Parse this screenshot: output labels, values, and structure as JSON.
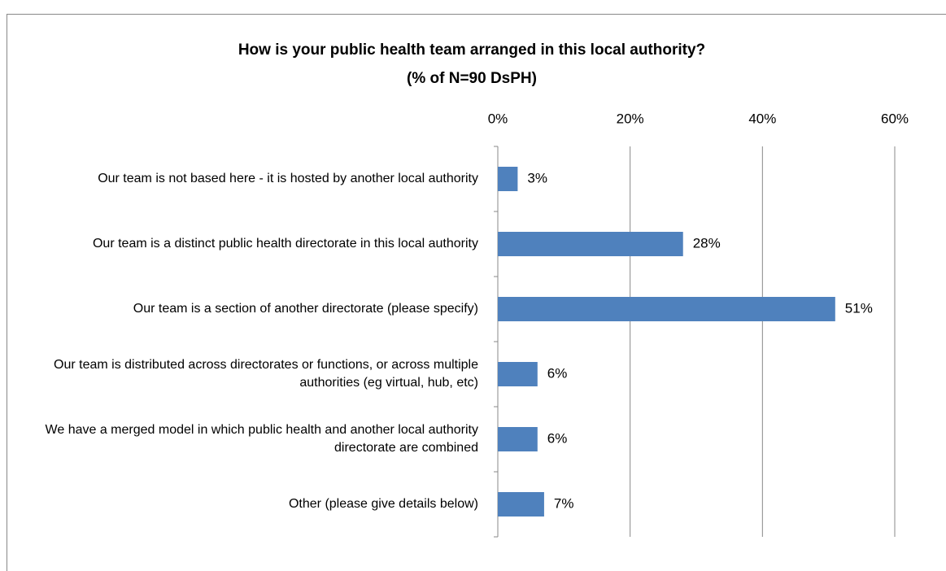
{
  "chart_data": {
    "type": "bar",
    "orientation": "horizontal",
    "title": "How is your public health team arranged in this local authority?",
    "subtitle": "(% of N=90 DsPH)",
    "categories": [
      "Our team is not based here - it is hosted by another local authority",
      "Our team is a distinct public health directorate in this local authority",
      "Our team is a section of another directorate (please specify)",
      "Our team is distributed across directorates or functions, or across multiple authorities (eg virtual, hub, etc)",
      "We have a merged model in which public health and another local authority directorate are combined",
      "Other (please give details below)"
    ],
    "values": [
      3,
      28,
      51,
      6,
      6,
      7
    ],
    "value_labels": [
      "3%",
      "28%",
      "51%",
      "6%",
      "6%",
      "7%"
    ],
    "color": "#4f81bd",
    "xlim": [
      0,
      60
    ],
    "xticks": [
      {
        "value": 0,
        "label": "0%"
      },
      {
        "value": 20,
        "label": "20%"
      },
      {
        "value": 40,
        "label": "40%"
      },
      {
        "value": 60,
        "label": "60%"
      }
    ],
    "grid": true
  }
}
